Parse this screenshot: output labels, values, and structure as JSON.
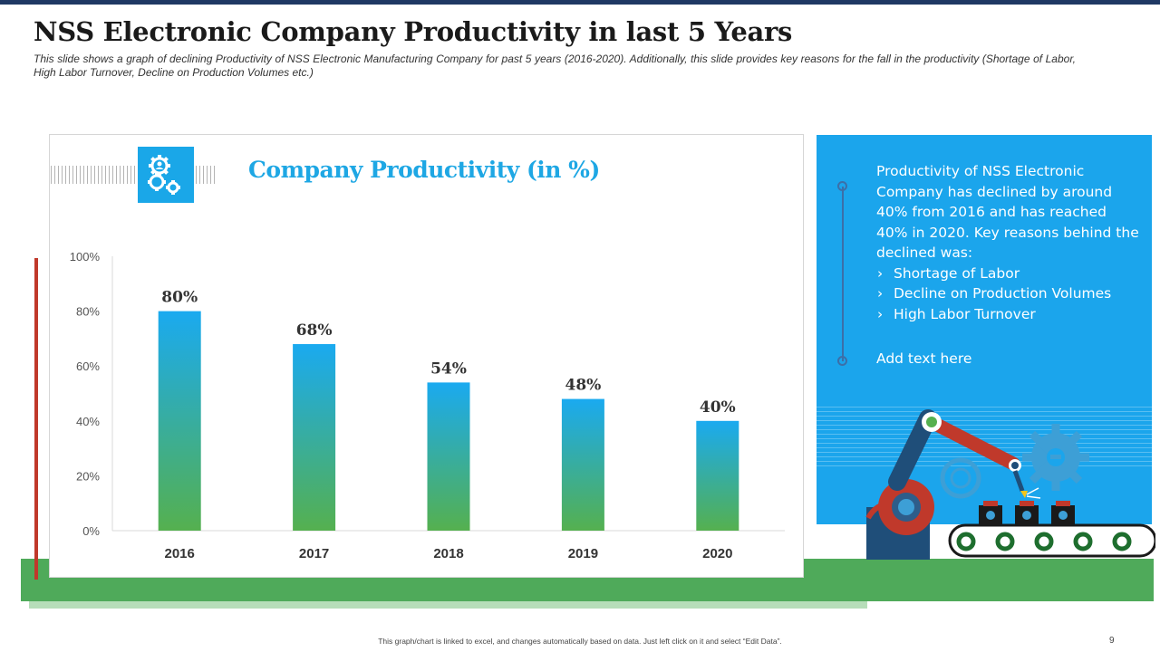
{
  "slide": {
    "title": "NSS Electronic Company Productivity in last 5 Years",
    "subtitle": "This slide shows a graph of declining Productivity of NSS Electronic Manufacturing Company for past 5 years (2016-2020). Additionally, this slide provides key reasons for the fall in the productivity (Shortage of Labor, High Labor Turnover, Decline on Production Volumes etc.)",
    "footer": "This graph/chart is linked to excel, and changes automatically based on data. Just left click on it and select “Edit Data”.",
    "page_number": "9"
  },
  "chart_data": {
    "type": "bar",
    "title": "Company Productivity (in %)",
    "categories": [
      "2016",
      "2017",
      "2018",
      "2019",
      "2020"
    ],
    "values": [
      80,
      68,
      54,
      48,
      40
    ],
    "data_labels": [
      "80%",
      "68%",
      "54%",
      "48%",
      "40%"
    ],
    "y_ticks": [
      "0%",
      "20%",
      "40%",
      "60%",
      "80%",
      "100%"
    ],
    "ylim": [
      0,
      100
    ],
    "xlabel": "",
    "ylabel": "",
    "colors": {
      "bar_top": "#1aaaf0",
      "bar_bottom": "#55b04f"
    }
  },
  "info": {
    "paragraph": "Productivity of NSS Electronic Company has declined by around 40% from 2016 and has reached 40% in 2020. Key reasons behind the declined was:",
    "reasons": [
      "Shortage of Labor",
      "Decline on Production Volumes",
      "High Labor Turnover"
    ],
    "add_text": "Add text here"
  },
  "icons": {
    "chart_badge": "gears-person-icon",
    "illustration": "robot-arm-conveyor-icon"
  },
  "colors": {
    "accent_blue": "#1ba5ec",
    "green": "#4faa5a",
    "red": "#c0392b",
    "navy": "#1f3864"
  }
}
